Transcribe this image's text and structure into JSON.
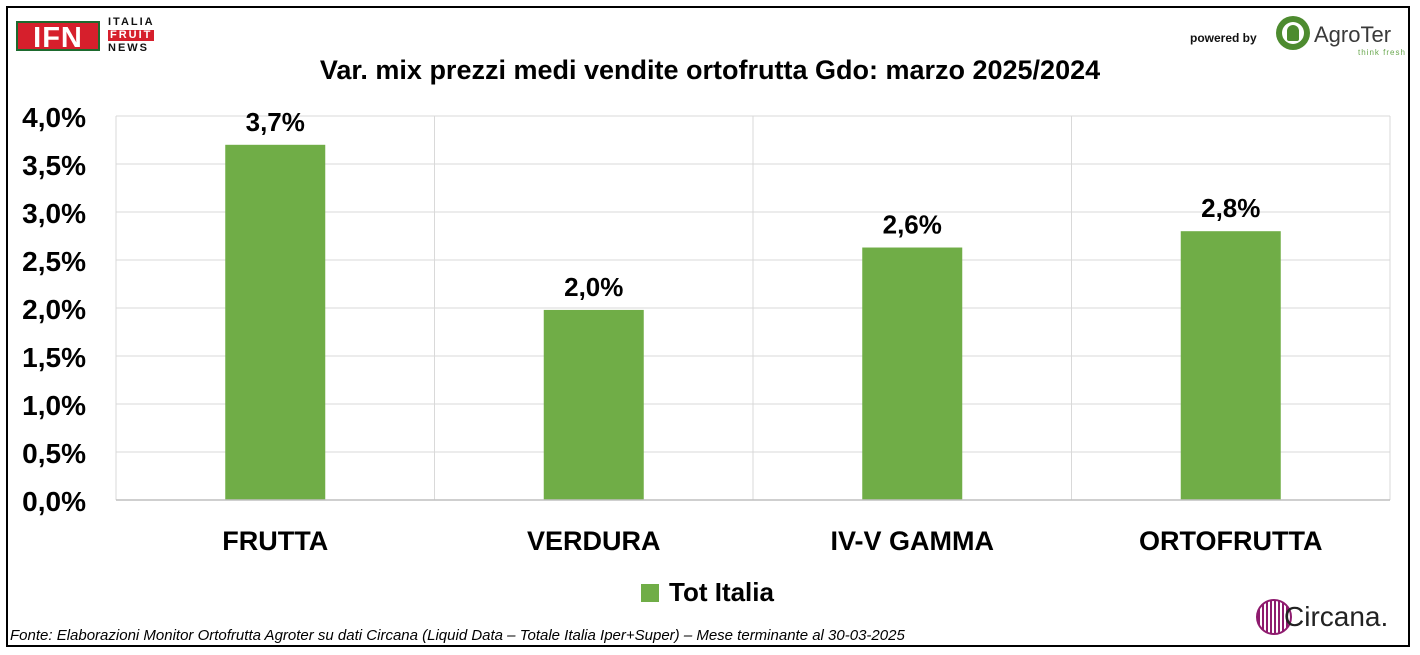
{
  "branding": {
    "ifn_main": "IFN",
    "ifn_line1": "ITALIA",
    "ifn_line2": "FRUIT",
    "ifn_line3": "NEWS",
    "powered_by": "powered by",
    "agroter_name": "AgroTer",
    "agroter_tagline": "think fresh",
    "circana_name": "Circana."
  },
  "source_note": "Fonte: Elaborazioni Monitor Ortofrutta Agroter su dati Circana (Liquid Data – Totale Italia Iper+Super) – Mese terminante al 30-03-2025",
  "colors": {
    "bar": "#70ad47",
    "grid": "#d9d9d9",
    "axis": "#bfbfbf",
    "brand_red": "#d61f2c"
  },
  "chart_data": {
    "type": "bar",
    "title": "Var. mix prezzi medi vendite ortofrutta Gdo: marzo 2025/2024",
    "categories": [
      "FRUTTA",
      "VERDURA",
      "IV-V GAMMA",
      "ORTOFRUTTA"
    ],
    "series": [
      {
        "name": "Tot Italia",
        "values": [
          3.7,
          1.98,
          2.63,
          2.8
        ],
        "labels": [
          "3,7%",
          "2,0%",
          "2,6%",
          "2,8%"
        ]
      }
    ],
    "ylim": [
      0,
      4.0
    ],
    "yticks": [
      "0,0%",
      "0,5%",
      "1,0%",
      "1,5%",
      "2,0%",
      "2,5%",
      "3,0%",
      "3,5%",
      "4,0%"
    ],
    "grid": true,
    "legend": "bottom",
    "xlabel": "",
    "ylabel": ""
  }
}
